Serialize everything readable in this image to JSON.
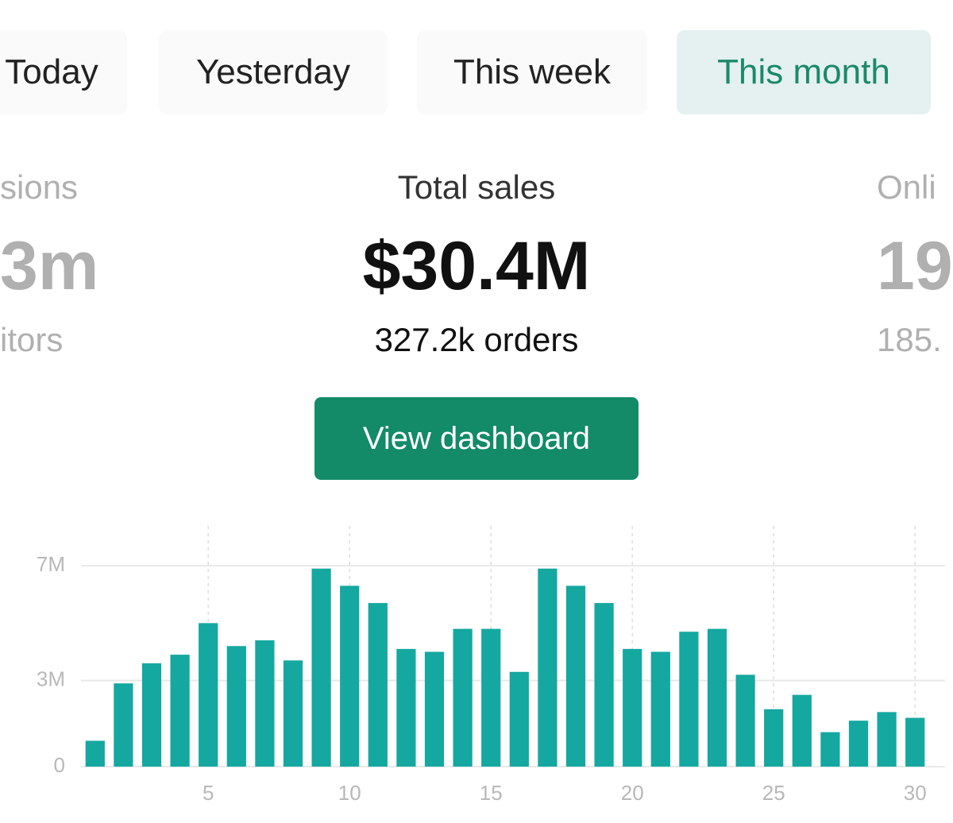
{
  "tabs": [
    "Today",
    "Yesterday",
    "This week",
    "This month"
  ],
  "active_tab": 3,
  "stats": [
    {
      "label": "sions",
      "value": "3m",
      "sub": "itors"
    },
    {
      "label": "Total sales",
      "value": "$30.4M",
      "sub": "327.2k orders"
    },
    {
      "label": "Onli",
      "value": "19",
      "sub": "185."
    }
  ],
  "button": "View dashboard",
  "chart_data": {
    "type": "bar",
    "x": [
      1,
      2,
      3,
      4,
      5,
      6,
      7,
      8,
      9,
      10,
      11,
      12,
      13,
      14,
      15,
      16,
      17,
      18,
      19,
      20,
      21,
      22,
      23,
      24,
      25,
      26,
      27,
      28,
      29,
      30
    ],
    "values": [
      900000,
      2900000,
      3600000,
      3900000,
      5000000,
      4200000,
      4400000,
      3700000,
      6900000,
      6300000,
      5700000,
      4100000,
      4000000,
      4800000,
      4800000,
      3300000,
      6900000,
      6300000,
      5700000,
      4100000,
      4000000,
      4700000,
      4800000,
      3200000,
      2000000,
      2500000,
      1200000,
      1600000,
      1900000,
      1700000
    ],
    "color": "#14a8a0",
    "xlim": [
      0.5,
      30.5
    ],
    "xticks": [
      5,
      10,
      15,
      20,
      25,
      30
    ],
    "ylim": [
      0,
      8000000
    ],
    "yticks": [
      0,
      {
        "value": 3000000,
        "label": "3M"
      },
      {
        "value": 7000000,
        "label": "7M"
      }
    ],
    "grid": true
  }
}
